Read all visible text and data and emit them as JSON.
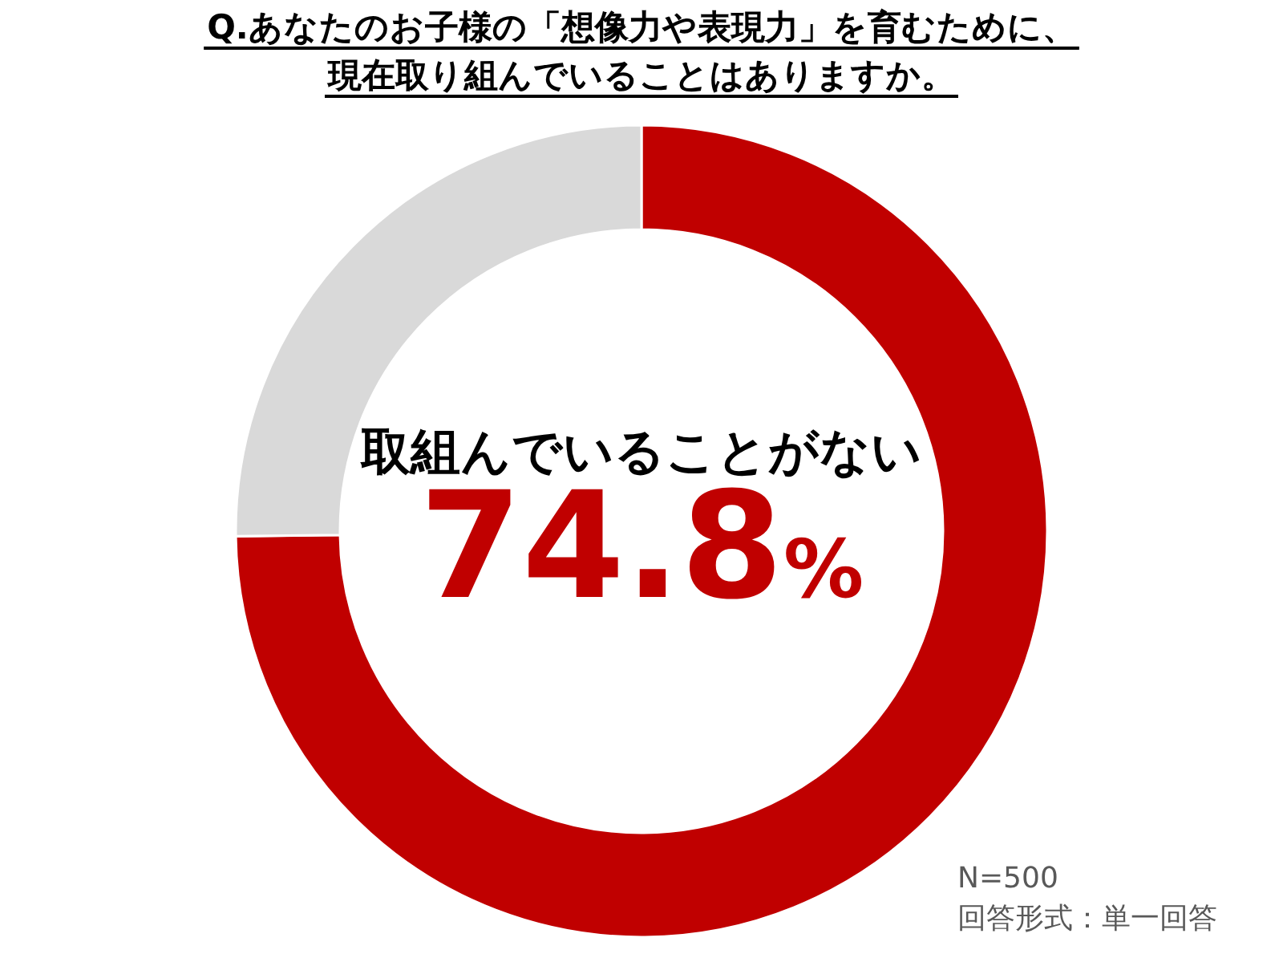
{
  "chart_data": {
    "type": "donut",
    "title": "Q.あなたのお子様の「想像力や表現力」を育むために、現在取り組んでいることはありますか。",
    "categories": [
      "取組んでいることがない",
      null
    ],
    "values": [
      74.8,
      25.2
    ],
    "colors": [
      "#c00000",
      "#d9d9d9"
    ],
    "value_labels": [
      "74.8%",
      null
    ],
    "annotations": [
      "N=500",
      "回答形式：単一回答"
    ]
  }
}
